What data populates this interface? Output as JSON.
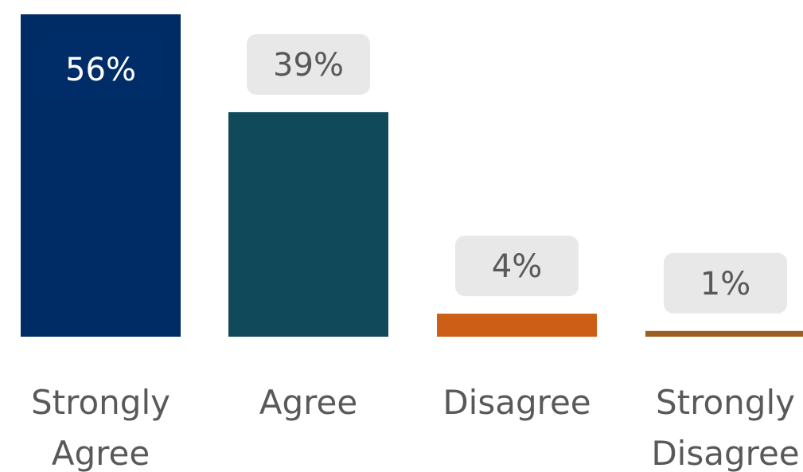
{
  "chart_data": {
    "type": "bar",
    "categories": [
      "Strongly Agree",
      "Agree",
      "Disagree",
      "Strongly Disagree"
    ],
    "category_label_lines": [
      [
        "Strongly",
        "Agree"
      ],
      [
        "Agree"
      ],
      [
        "Disagree"
      ],
      [
        "Strongly",
        "Disagree"
      ]
    ],
    "values": [
      56,
      39,
      4,
      1
    ],
    "data_labels": [
      "56%",
      "39%",
      "4%",
      "1%"
    ],
    "bar_colors": [
      "#002c66",
      "#10495a",
      "#cc5f15",
      "#9e5e22"
    ],
    "label_box_colors": [
      "#002d68",
      "#e8e8e8",
      "#e8e8e8",
      "#e8e8e8"
    ],
    "label_text_colors": [
      "#ffffff",
      "#595959",
      "#595959",
      "#595959"
    ],
    "label_position": [
      "inside-top",
      "above",
      "above",
      "above"
    ],
    "ylim": [
      0,
      56
    ],
    "title": "",
    "xlabel": "",
    "ylabel": "",
    "grid": false,
    "legend": false
  }
}
